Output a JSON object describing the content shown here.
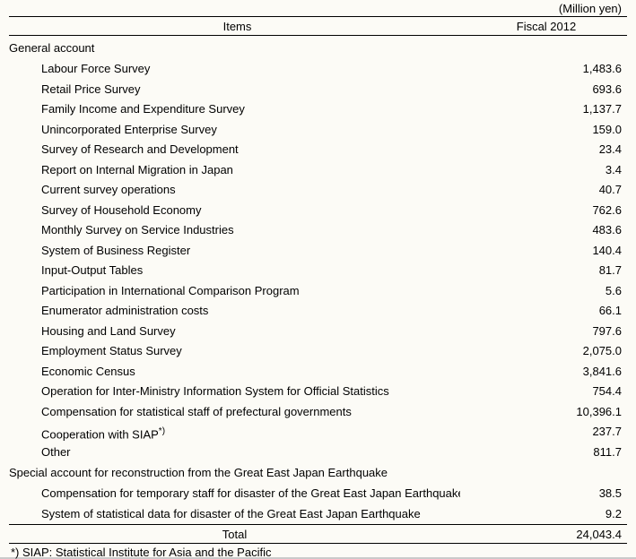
{
  "unit_label": "(Million yen)",
  "header": {
    "items": "Items",
    "fiscal": "Fiscal 2012"
  },
  "sections": [
    {
      "title": "General account",
      "rows": [
        {
          "label": "Labour Force Survey",
          "value": "1,483.6"
        },
        {
          "label": "Retail Price Survey",
          "value": "693.6"
        },
        {
          "label": "Family Income and Expenditure Survey",
          "value": "1,137.7"
        },
        {
          "label": "Unincorporated Enterprise Survey",
          "value": "159.0"
        },
        {
          "label": "Survey of Research and Development",
          "value": "23.4"
        },
        {
          "label": "Report on Internal Migration in Japan",
          "value": "3.4"
        },
        {
          "label": "Current survey operations",
          "value": "40.7"
        },
        {
          "label": "Survey of Household Economy",
          "value": "762.6"
        },
        {
          "label": "Monthly Survey on Service Industries",
          "value": "483.6"
        },
        {
          "label": "System of Business Register",
          "value": "140.4"
        },
        {
          "label": "Input-Output Tables",
          "value": "81.7"
        },
        {
          "label": "Participation in International Comparison Program",
          "value": "5.6"
        },
        {
          "label": "Enumerator administration costs",
          "value": "66.1"
        },
        {
          "label": "Housing and Land Survey",
          "value": "797.6"
        },
        {
          "label": "Employment Status Survey",
          "value": "2,075.0"
        },
        {
          "label": "Economic Census",
          "value": "3,841.6"
        },
        {
          "label": "Operation for Inter-Ministry Information System for Official Statistics",
          "value": "754.4"
        },
        {
          "label": "Compensation for statistical staff of prefectural governments",
          "value": "10,396.1"
        },
        {
          "label_html": "Cooperation with SIAP<sup>*)</sup>",
          "value": "237.7"
        },
        {
          "label": "Other",
          "value": "811.7"
        }
      ]
    },
    {
      "title": "Special account for reconstruction from the Great East Japan Earthquake",
      "rows": [
        {
          "label": "Compensation for temporary staff for disaster of the Great East Japan Earthquake",
          "value": "38.5"
        },
        {
          "label": "System of statistical data for disaster of the Great East Japan Earthquake",
          "value": "9.2"
        }
      ]
    }
  ],
  "total": {
    "label": "Total",
    "value": "24,043.4"
  },
  "footnote": "*) SIAP: Statistical Institute for Asia and the Pacific"
}
